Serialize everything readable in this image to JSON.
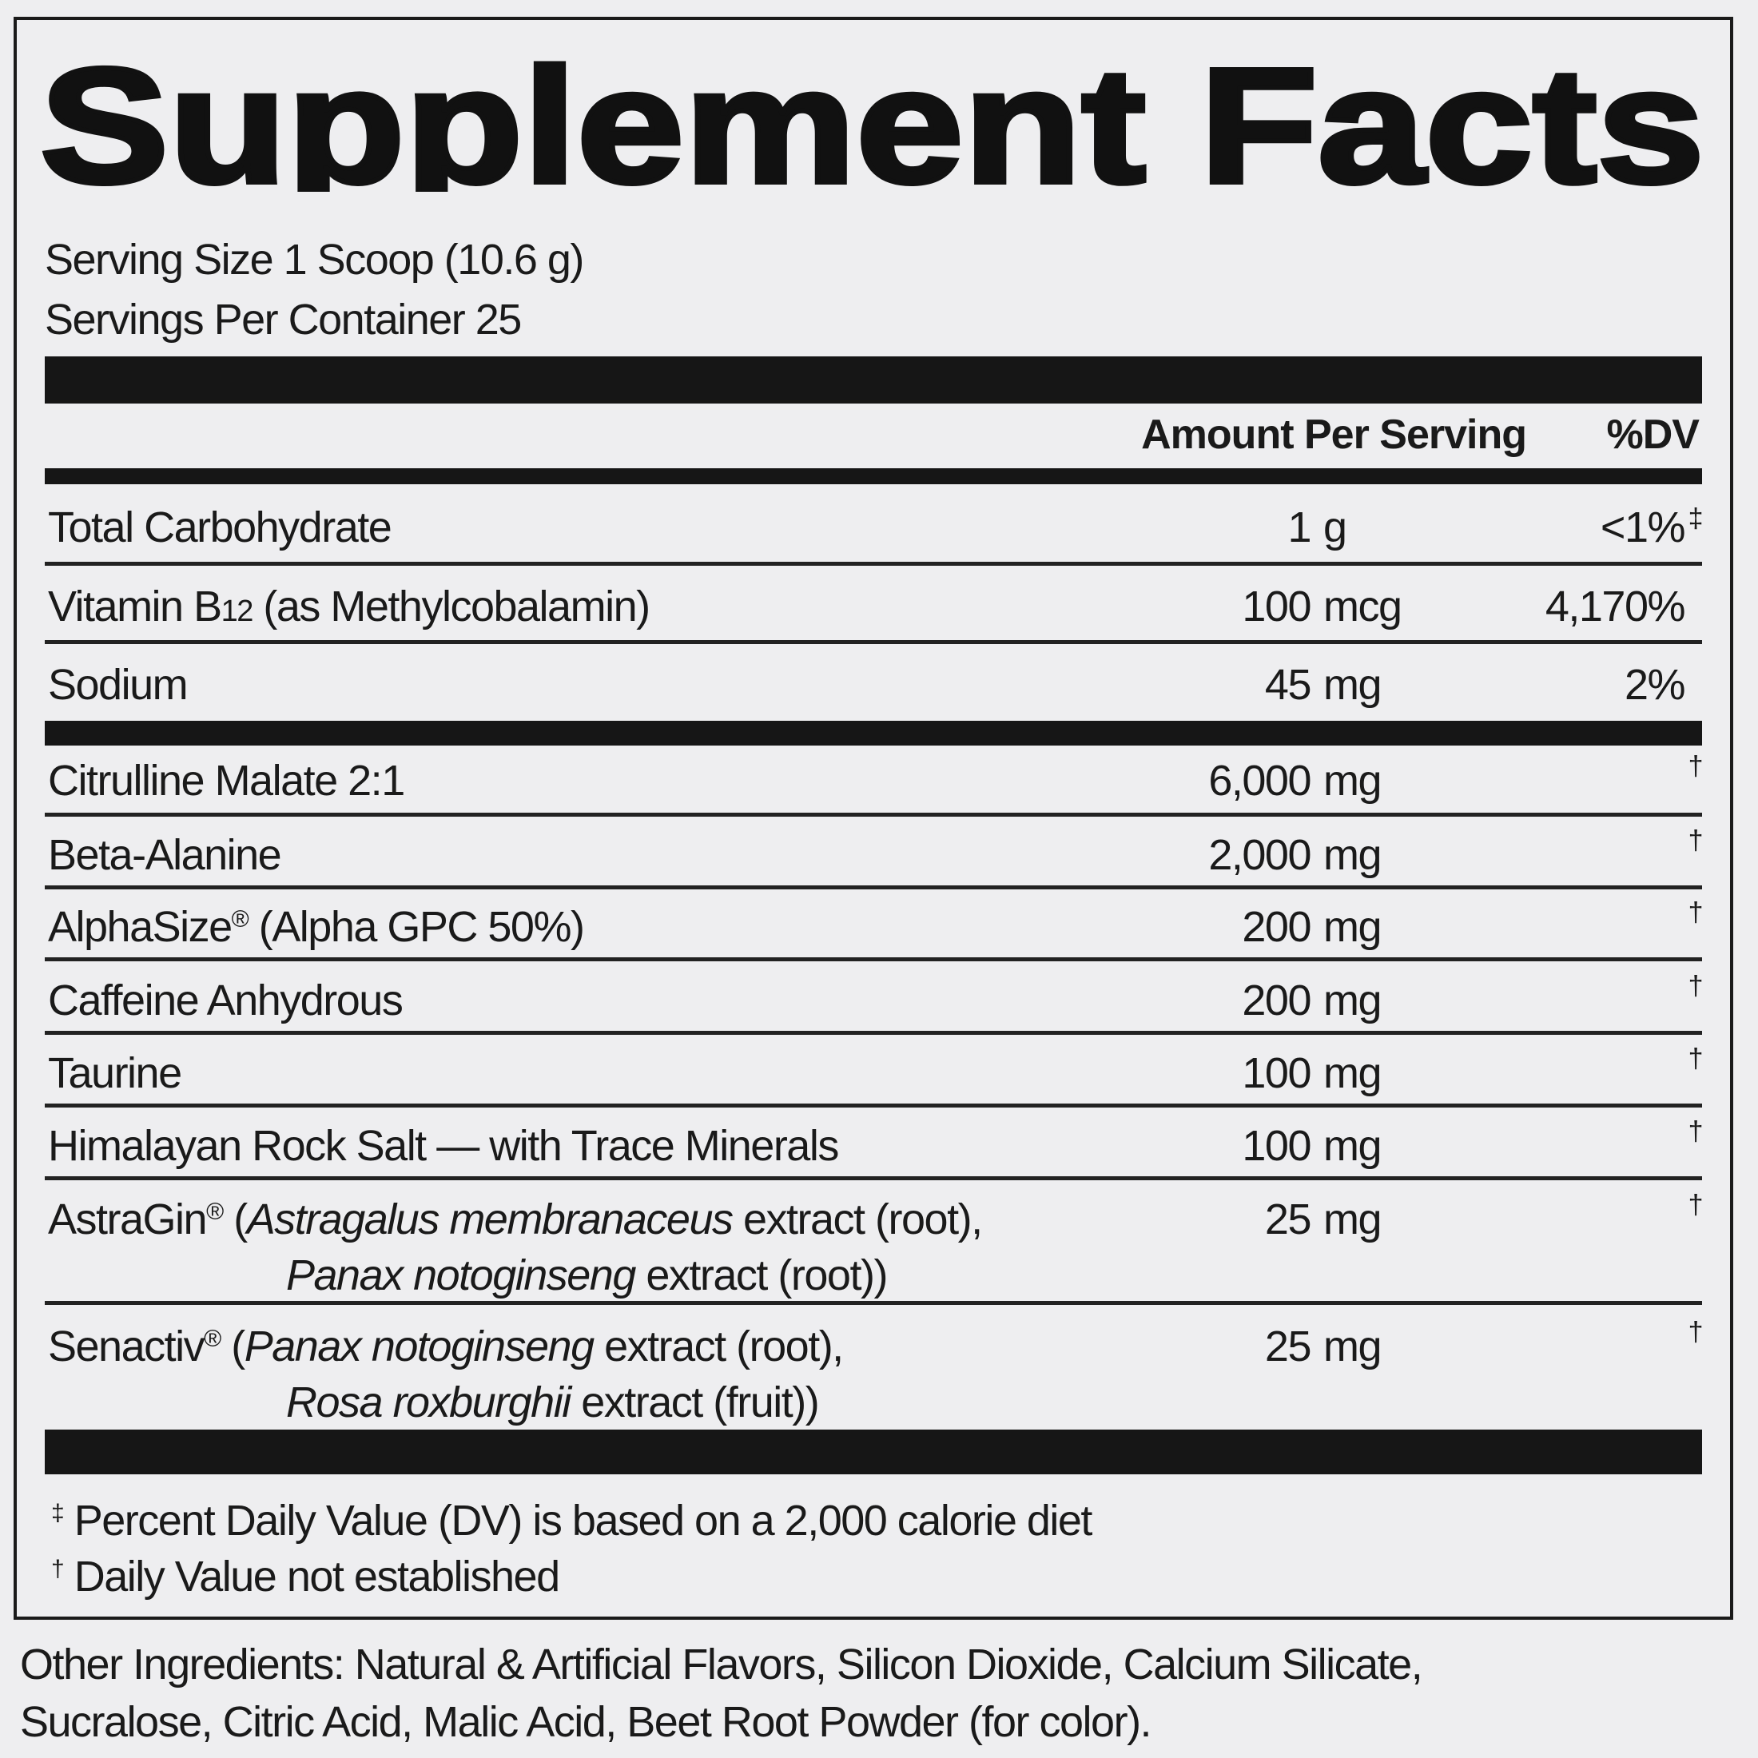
{
  "title": "Supplement Facts",
  "serving_size": "Serving Size 1 Scoop (10.6 g)",
  "servings_per_container": "Servings Per Container  25",
  "header": {
    "amount": "Amount Per Serving",
    "dv": "%DV"
  },
  "nutrients": [
    {
      "name": "Total Carbohydrate",
      "amount": "1",
      "unit": "g",
      "dv": "<1%",
      "mark": "‡"
    },
    {
      "name_pre": "Vitamin B",
      "name_sub": "12",
      "name_post": " (as Methylcobalamin)",
      "amount": "100",
      "unit": "mcg",
      "dv": "4,170%"
    },
    {
      "name": "Sodium",
      "amount": "45",
      "unit": "mg",
      "dv": "2%"
    }
  ],
  "ingredients": [
    {
      "name": "Citrulline Malate 2:1",
      "amount": "6,000",
      "unit": "mg",
      "mark": "†"
    },
    {
      "name": "Beta-Alanine",
      "amount": "2,000",
      "unit": "mg",
      "mark": "†"
    },
    {
      "name": "AlphaSize",
      "reg": "®",
      "rest": " (Alpha GPC 50%)",
      "amount": "200",
      "unit": "mg",
      "mark": "†"
    },
    {
      "name": "Caffeine Anhydrous",
      "amount": "200",
      "unit": "mg",
      "mark": "†"
    },
    {
      "name": "Taurine",
      "amount": "100",
      "unit": "mg",
      "mark": "†"
    },
    {
      "name": "Himalayan Rock Salt — with Trace Minerals",
      "amount": "100",
      "unit": "mg",
      "mark": "†"
    },
    {
      "name": "AstraGin",
      "reg": "®",
      "l1_open": " (",
      "l1_italic": "Astragalus membranaceus",
      "l1_rest": " extract (root),",
      "l2_italic": "Panax notoginseng",
      "l2_rest": " extract (root))",
      "amount": "25",
      "unit": "mg",
      "mark": "†"
    },
    {
      "name": "Senactiv",
      "reg": "®",
      "l1_open": " (",
      "l1_italic": "Panax notoginseng",
      "l1_rest": " extract (root),",
      "l2_italic": "Rosa roxburghii",
      "l2_rest": " extract (fruit))",
      "amount": "25",
      "unit": "mg",
      "mark": "†"
    }
  ],
  "footnotes": [
    {
      "mark": "‡",
      "text": "Percent Daily Value (DV) is based on a 2,000 calorie diet"
    },
    {
      "mark": "†",
      "text": "Daily Value not established"
    }
  ],
  "other_ingredients": {
    "line1": "Other Ingredients: Natural & Artificial Flavors, Silicon Dioxide, Calcium Silicate,",
    "line2": "Sucralose, Citric Acid, Malic Acid, Beet Root Powder (for color)."
  }
}
